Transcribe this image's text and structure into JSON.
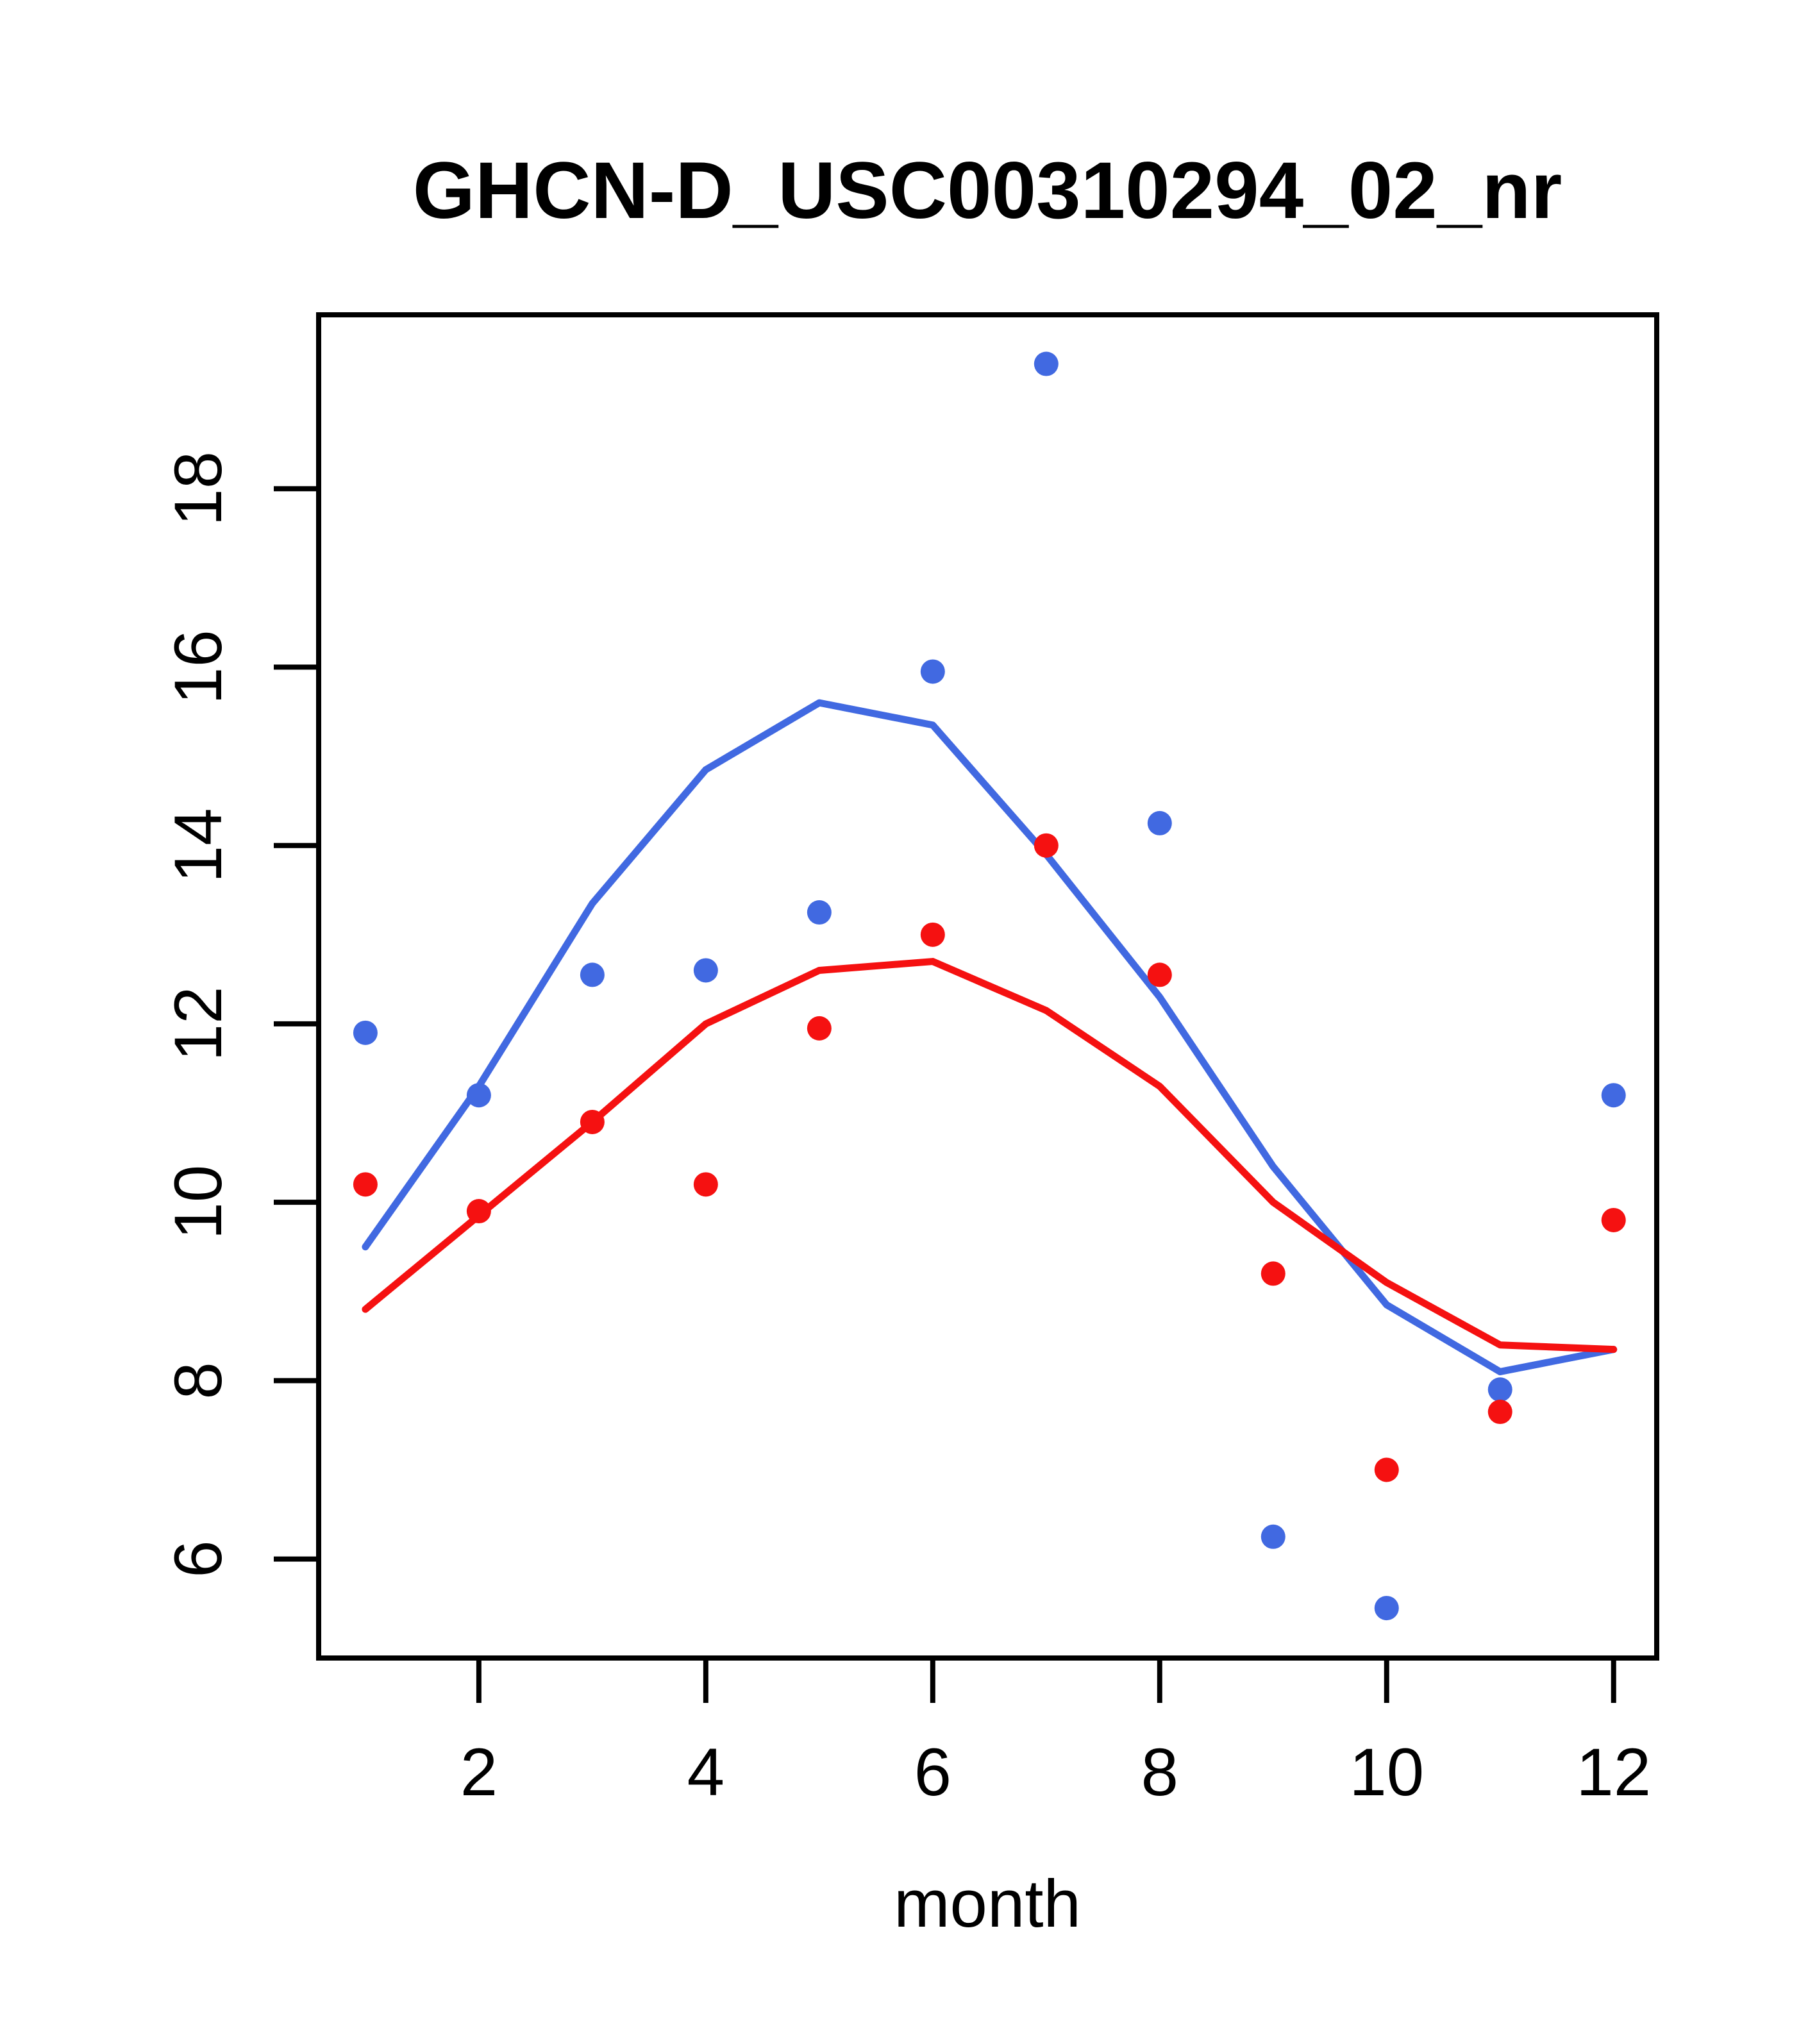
{
  "chart_data": {
    "type": "scatter",
    "title": "GHCN-D_USC00310294_02_nr",
    "xlabel": "month",
    "ylabel": "",
    "x": [
      1,
      2,
      3,
      4,
      5,
      6,
      7,
      8,
      9,
      10,
      11,
      12
    ],
    "x_ticks": [
      2,
      4,
      6,
      8,
      10,
      12
    ],
    "y_ticks": [
      6,
      8,
      10,
      12,
      14,
      16,
      18
    ],
    "xlim": [
      0.588,
      12.38
    ],
    "ylim": [
      4.89,
      19.95
    ],
    "grid": false,
    "legend": "none",
    "frame_color": "#000000",
    "background": "#ffffff",
    "series": [
      {
        "name": "blue-smooth-line",
        "kind": "line",
        "color": "#4169E1",
        "values": [
          9.5,
          11.3,
          13.35,
          14.85,
          15.6,
          15.35,
          13.9,
          12.3,
          10.4,
          8.85,
          8.1,
          8.35
        ]
      },
      {
        "name": "red-smooth-line",
        "kind": "line",
        "color": "#F51111",
        "values": [
          8.8,
          9.85,
          10.9,
          12.0,
          12.6,
          12.7,
          12.15,
          11.3,
          10.0,
          9.1,
          8.4,
          8.35
        ]
      },
      {
        "name": "blue-points",
        "kind": "points",
        "color": "#4169E1",
        "values": [
          11.9,
          11.2,
          12.55,
          12.6,
          13.25,
          15.95,
          19.4,
          14.25,
          6.25,
          5.45,
          7.9,
          11.2
        ]
      },
      {
        "name": "red-points",
        "kind": "points",
        "color": "#F51111",
        "values": [
          10.2,
          9.9,
          10.9,
          10.2,
          11.95,
          13.0,
          14.0,
          12.55,
          9.2,
          7.0,
          7.65,
          9.8
        ]
      }
    ]
  }
}
